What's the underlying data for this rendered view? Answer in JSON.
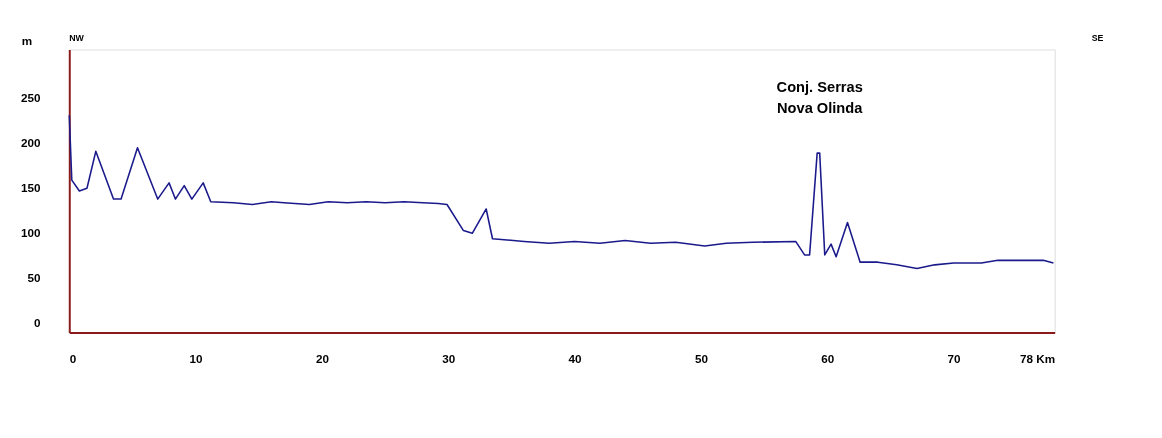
{
  "chart_data": {
    "type": "line",
    "ylabel": "m",
    "grid": false,
    "xlim": [
      0,
      78
    ],
    "ylim": [
      -11,
      303
    ],
    "xticks": [
      0,
      10,
      20,
      30,
      40,
      50,
      60,
      70,
      {
        "value": 78,
        "label": "78 Km"
      }
    ],
    "yticks": [
      0,
      50,
      100,
      150,
      200,
      250
    ],
    "annotations": [
      "NW",
      "SE",
      {
        "text": "Conj. Serras\nNova Olinda",
        "x": 59.4,
        "y": 188
      }
    ],
    "series": [
      {
        "color": "#1a1a8c",
        "x": [
          0,
          0.2,
          0.8,
          1.4,
          2.1,
          3.5,
          4.1,
          5.4,
          7.0,
          7.9,
          8.4,
          9.1,
          9.7,
          10.6,
          11.2,
          13,
          14.5,
          16,
          17,
          19,
          20.5,
          22,
          23.5,
          25,
          26.5,
          28,
          29.2,
          29.9,
          31.2,
          31.9,
          33.0,
          33.5,
          36,
          38,
          40,
          42,
          44,
          46,
          48,
          50.3,
          52,
          54.1,
          57.5,
          58.2,
          58.6,
          59.2,
          59.4,
          59.8,
          60.3,
          60.7,
          61.6,
          62.6,
          64,
          65.5,
          67.1,
          68.5,
          70,
          71.5,
          72.2,
          73.5,
          77.1,
          77.9
        ],
        "values": [
          230,
          158,
          146,
          149,
          190,
          137,
          137,
          194,
          137,
          155,
          137,
          152,
          137,
          155,
          134,
          133,
          131,
          134,
          133,
          131,
          134,
          133,
          134,
          133,
          134,
          133,
          132,
          131,
          102,
          99,
          126,
          93,
          90,
          88,
          90,
          88,
          91,
          88,
          89,
          85,
          88,
          89,
          90,
          75,
          75,
          188,
          188,
          75,
          87,
          73,
          111,
          67,
          67,
          64,
          60,
          64,
          66,
          66,
          66,
          69,
          69,
          66
        ]
      }
    ]
  }
}
